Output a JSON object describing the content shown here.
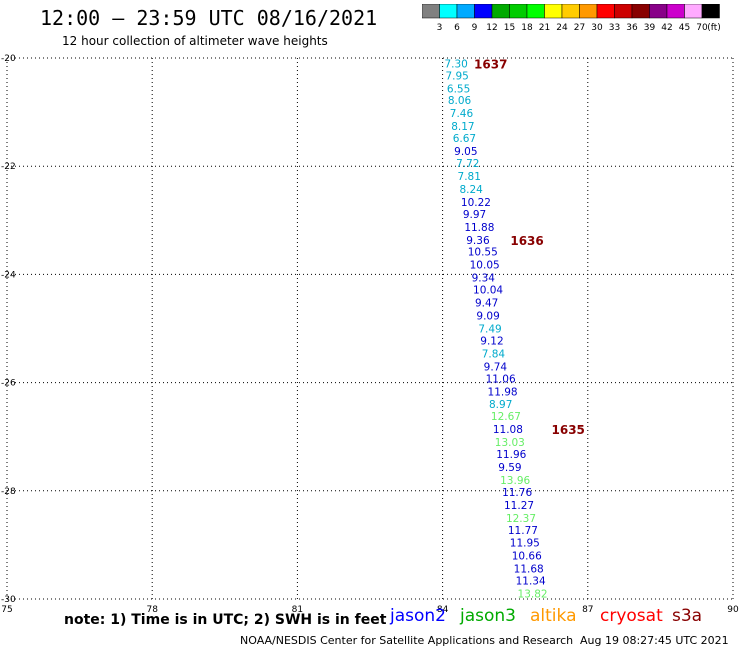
{
  "header": {
    "title": "12:00 – 23:59 UTC 08/16/2021",
    "subtitle": "12 hour collection of altimeter wave heights"
  },
  "legend": {
    "colors": [
      "#808080",
      "#00ffff",
      "#00aaff",
      "#0000ff",
      "#00aa00",
      "#00cc00",
      "#00ff00",
      "#ffff00",
      "#ffcc00",
      "#ff9900",
      "#ff0000",
      "#cc0000",
      "#880000",
      "#880088",
      "#cc00cc",
      "#ffaaff",
      "#000000"
    ],
    "labels": [
      "3",
      "6",
      "9",
      "12",
      "15",
      "18",
      "21",
      "24",
      "27",
      "30",
      "33",
      "36",
      "39",
      "42",
      "45",
      "70"
    ],
    "unit": "(ft)"
  },
  "chart_data": {
    "type": "scatter",
    "xlim": [
      75,
      90
    ],
    "ylim": [
      -30,
      -20
    ],
    "x_ticks": [
      "75",
      "78",
      "81",
      "84",
      "87",
      "90"
    ],
    "y_ticks": [
      "-20",
      "-22",
      "-24",
      "-26",
      "-28",
      "-30"
    ],
    "grid": true,
    "points": [
      {
        "x": 84.08,
        "y": -20.1,
        "label": "7.30",
        "color": "#00aacc"
      },
      {
        "x": 84.1,
        "y": -20.32,
        "label": "7.95",
        "color": "#00aacc"
      },
      {
        "x": 84.13,
        "y": -20.56,
        "label": "6.55",
        "color": "#00aacc"
      },
      {
        "x": 84.15,
        "y": -20.78,
        "label": "8.06",
        "color": "#00aacc"
      },
      {
        "x": 84.19,
        "y": -21.02,
        "label": "7.46",
        "color": "#00aacc"
      },
      {
        "x": 84.22,
        "y": -21.26,
        "label": "8.17",
        "color": "#00aacc"
      },
      {
        "x": 84.25,
        "y": -21.48,
        "label": "6.67",
        "color": "#00aacc"
      },
      {
        "x": 84.28,
        "y": -21.72,
        "label": "9.05",
        "color": "#0000cc"
      },
      {
        "x": 84.32,
        "y": -21.94,
        "label": "7.72",
        "color": "#00aacc"
      },
      {
        "x": 84.35,
        "y": -22.18,
        "label": "7.81",
        "color": "#00aacc"
      },
      {
        "x": 84.39,
        "y": -22.42,
        "label": "8.24",
        "color": "#00aacc"
      },
      {
        "x": 84.42,
        "y": -22.66,
        "label": "10.22",
        "color": "#0000cc"
      },
      {
        "x": 84.46,
        "y": -22.88,
        "label": "9.97",
        "color": "#0000cc"
      },
      {
        "x": 84.49,
        "y": -23.12,
        "label": "11.88",
        "color": "#0000cc"
      },
      {
        "x": 84.53,
        "y": -23.36,
        "label": "9.36",
        "color": "#0000cc"
      },
      {
        "x": 84.56,
        "y": -23.58,
        "label": "10.55",
        "color": "#0000cc"
      },
      {
        "x": 84.6,
        "y": -23.82,
        "label": "10.05",
        "color": "#0000cc"
      },
      {
        "x": 84.64,
        "y": -24.06,
        "label": "9.34",
        "color": "#0000cc"
      },
      {
        "x": 84.67,
        "y": -24.28,
        "label": "10.04",
        "color": "#0000cc"
      },
      {
        "x": 84.71,
        "y": -24.52,
        "label": "9.47",
        "color": "#0000cc"
      },
      {
        "x": 84.74,
        "y": -24.76,
        "label": "9.09",
        "color": "#0000cc"
      },
      {
        "x": 84.78,
        "y": -25.0,
        "label": "7.49",
        "color": "#00aacc"
      },
      {
        "x": 84.82,
        "y": -25.22,
        "label": "9.12",
        "color": "#0000cc"
      },
      {
        "x": 84.85,
        "y": -25.46,
        "label": "7.84",
        "color": "#00aacc"
      },
      {
        "x": 84.89,
        "y": -25.7,
        "label": "9.74",
        "color": "#0000cc"
      },
      {
        "x": 84.93,
        "y": -25.92,
        "label": "11.06",
        "color": "#0000cc"
      },
      {
        "x": 84.97,
        "y": -26.16,
        "label": "11.98",
        "color": "#0000cc"
      },
      {
        "x": 85.0,
        "y": -26.4,
        "label": "8.97",
        "color": "#00aacc"
      },
      {
        "x": 85.04,
        "y": -26.62,
        "label": "12.67",
        "color": "#66ee66"
      },
      {
        "x": 85.08,
        "y": -26.86,
        "label": "11.08",
        "color": "#0000cc"
      },
      {
        "x": 85.12,
        "y": -27.1,
        "label": "13.03",
        "color": "#66ee66"
      },
      {
        "x": 85.15,
        "y": -27.32,
        "label": "11.96",
        "color": "#0000cc"
      },
      {
        "x": 85.19,
        "y": -27.56,
        "label": "9.59",
        "color": "#0000cc"
      },
      {
        "x": 85.23,
        "y": -27.8,
        "label": "13.96",
        "color": "#66ee66"
      },
      {
        "x": 85.27,
        "y": -28.02,
        "label": "11.76",
        "color": "#0000cc"
      },
      {
        "x": 85.31,
        "y": -28.26,
        "label": "11.27",
        "color": "#0000cc"
      },
      {
        "x": 85.35,
        "y": -28.5,
        "label": "12.37",
        "color": "#66ee66"
      },
      {
        "x": 85.39,
        "y": -28.72,
        "label": "11.77",
        "color": "#0000cc"
      },
      {
        "x": 85.43,
        "y": -28.96,
        "label": "11.95",
        "color": "#0000cc"
      },
      {
        "x": 85.47,
        "y": -29.2,
        "label": "10.66",
        "color": "#0000cc"
      },
      {
        "x": 85.51,
        "y": -29.44,
        "label": "11.68",
        "color": "#0000cc"
      },
      {
        "x": 85.55,
        "y": -29.66,
        "label": "11.34",
        "color": "#0000cc"
      },
      {
        "x": 85.59,
        "y": -29.9,
        "label": "13.82",
        "color": "#66ee66"
      }
    ],
    "annotations": [
      {
        "x": 84.65,
        "y": -20.1,
        "text": "1637",
        "color": "#880000"
      },
      {
        "x": 85.4,
        "y": -23.36,
        "text": "1636",
        "color": "#880000"
      },
      {
        "x": 86.25,
        "y": -26.86,
        "text": "1635",
        "color": "#880000"
      }
    ]
  },
  "footer": {
    "note": "note: 1) Time is in UTC; 2) SWH is in feet",
    "satellites": [
      {
        "name": "jason2",
        "color": "#0000ff"
      },
      {
        "name": "jason3",
        "color": "#00aa00"
      },
      {
        "name": "altika",
        "color": "#ff9900"
      },
      {
        "name": "cryosat",
        "color": "#ff0000"
      },
      {
        "name": "s3a",
        "color": "#880000"
      }
    ],
    "credit": "NOAA/NESDIS Center for Satellite Applications and Research",
    "timestamp": "Aug 19 08:27:45 UTC 2021"
  }
}
